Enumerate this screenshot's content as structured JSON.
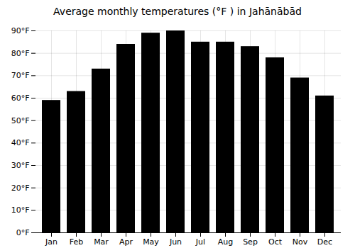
{
  "chart_data": {
    "type": "bar",
    "title": "Average monthly temperatures (°F ) in Jahānābād",
    "categories": [
      "Jan",
      "Feb",
      "Mar",
      "Apr",
      "May",
      "Jun",
      "Jul",
      "Aug",
      "Sep",
      "Oct",
      "Nov",
      "Dec"
    ],
    "values": [
      59,
      63,
      73,
      84,
      89,
      90,
      85,
      85,
      83,
      78,
      69,
      61
    ],
    "ylim": [
      0,
      90
    ],
    "yticks": [
      {
        "value": 0,
        "label": "0°F"
      },
      {
        "value": 10,
        "label": "10°F"
      },
      {
        "value": 20,
        "label": "20°F"
      },
      {
        "value": 30,
        "label": "30°F"
      },
      {
        "value": 40,
        "label": "40°F"
      },
      {
        "value": 50,
        "label": "50°F"
      },
      {
        "value": 60,
        "label": "60°F"
      },
      {
        "value": 70,
        "label": "70°F"
      },
      {
        "value": 80,
        "label": "80°F"
      },
      {
        "value": 90,
        "label": "90°F"
      }
    ],
    "grid": true
  }
}
